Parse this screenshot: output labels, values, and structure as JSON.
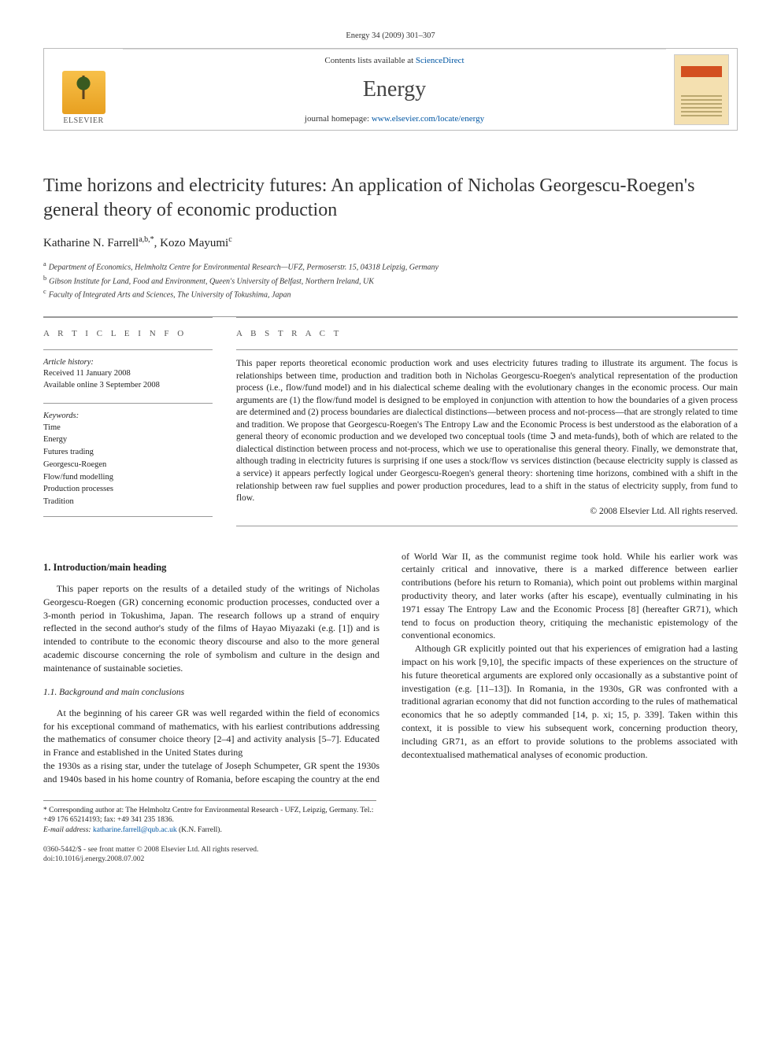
{
  "header": {
    "citation": "Energy 34 (2009) 301–307",
    "contents_prefix": "Contents lists available at ",
    "contents_link": "ScienceDirect",
    "journal_title": "Energy",
    "homepage_prefix": "journal homepage: ",
    "homepage_url": "www.elsevier.com/locate/energy",
    "publisher_name": "ELSEVIER"
  },
  "article": {
    "title": "Time horizons and electricity futures: An application of Nicholas Georgescu-Roegen's general theory of economic production",
    "authors_html": "Katharine N. Farrell",
    "author1_sup": "a,b,*",
    "author2": "Kozo Mayumi",
    "author2_sup": "c",
    "affiliations": [
      {
        "sup": "a",
        "text": "Department of Economics, Helmholtz Centre for Environmental Research—UFZ, Permoserstr. 15, 04318 Leipzig, Germany"
      },
      {
        "sup": "b",
        "text": "Gibson Institute for Land, Food and Environment, Queen's University of Belfast, Northern Ireland, UK"
      },
      {
        "sup": "c",
        "text": "Faculty of Integrated Arts and Sciences, The University of Tokushima, Japan"
      }
    ]
  },
  "info": {
    "heading": "A R T I C L E   I N F O",
    "history_label": "Article history:",
    "received": "Received 11 January 2008",
    "online": "Available online 3 September 2008",
    "keywords_label": "Keywords:",
    "keywords": [
      "Time",
      "Energy",
      "Futures trading",
      "Georgescu-Roegen",
      "Flow/fund modelling",
      "Production processes",
      "Tradition"
    ]
  },
  "abstract": {
    "heading": "A B S T R A C T",
    "text": "This paper reports theoretical economic production work and uses electricity futures trading to illustrate its argument. The focus is relationships between time, production and tradition both in Nicholas Georgescu-Roegen's analytical representation of the production process (i.e., flow/fund model) and in his dialectical scheme dealing with the evolutionary changes in the economic process. Our main arguments are (1) the flow/fund model is designed to be employed in conjunction with attention to how the boundaries of a given process are determined and (2) process boundaries are dialectical distinctions—between process and not-process—that are strongly related to time and tradition. We propose that Georgescu-Roegen's The Entropy Law and the Economic Process is best understood as the elaboration of a general theory of economic production and we developed two conceptual tools (time ℑ and meta-funds), both of which are related to the dialectical distinction between process and not-process, which we use to operationalise this general theory. Finally, we demonstrate that, although trading in electricity futures is surprising if one uses a stock/flow vs services distinction (because electricity supply is classed as a service) it appears perfectly logical under Georgescu-Roegen's general theory: shortening time horizons, combined with a shift in the relationship between raw fuel supplies and power production procedures, lead to a shift in the status of electricity supply, from fund to flow.",
    "copyright": "© 2008 Elsevier Ltd. All rights reserved."
  },
  "body": {
    "sec1_heading": "1.  Introduction/main heading",
    "p1": "This paper reports on the results of a detailed study of the writings of Nicholas Georgescu-Roegen (GR) concerning economic production processes, conducted over a 3-month period in Tokushima, Japan. The research follows up a strand of enquiry reflected in the second author's study of the films of Hayao Miyazaki (e.g. [1]) and is intended to contribute to the economic theory discourse and also to the more general academic discourse concerning the role of symbolism and culture in the design and maintenance of sustainable societies.",
    "sec11_heading": "1.1.  Background and main conclusions",
    "p2": "At the beginning of his career GR was well regarded within the field of economics for his exceptional command of mathematics, with his earliest contributions addressing the mathematics of consumer choice theory [2–4] and activity analysis [5–7]. Educated in France and established in the United States during",
    "p3": "the 1930s as a rising star, under the tutelage of Joseph Schumpeter, GR spent the 1930s and 1940s based in his home country of Romania, before escaping the country at the end of World War II, as the communist regime took hold. While his earlier work was certainly critical and innovative, there is a marked difference between earlier contributions (before his return to Romania), which point out problems within marginal productivity theory, and later works (after his escape), eventually culminating in his 1971 essay The Entropy Law and the Economic Process [8] (hereafter GR71), which tend to focus on production theory, critiquing the mechanistic epistemology of the conventional economics.",
    "p4": "Although GR explicitly pointed out that his experiences of emigration had a lasting impact on his work [9,10], the specific impacts of these experiences on the structure of his future theoretical arguments are explored only occasionally as a substantive point of investigation (e.g. [11–13]). In Romania, in the 1930s, GR was confronted with a traditional agrarian economy that did not function according to the rules of mathematical economics that he so adeptly commanded [14, p. xi; 15, p. 339]. Taken within this context, it is possible to view his subsequent work, concerning production theory, including GR71, as an effort to provide solutions to the problems associated with decontextualised mathematical analyses of economic production."
  },
  "footnote": {
    "corr": "* Corresponding author at: The Helmholtz Centre for Environmental Research - UFZ, Leipzig, Germany. Tel.: +49 176 65214193; fax: +49 341 235 1836.",
    "email_label": "E-mail address:",
    "email": "katharine.farrell@qub.ac.uk",
    "email_who": "(K.N. Farrell)."
  },
  "footer": {
    "line1": "0360-5442/$ - see front matter © 2008 Elsevier Ltd. All rights reserved.",
    "line2": "doi:10.1016/j.energy.2008.07.002"
  },
  "colors": {
    "link": "#0056a3",
    "rule": "#999999",
    "text": "#222222"
  }
}
